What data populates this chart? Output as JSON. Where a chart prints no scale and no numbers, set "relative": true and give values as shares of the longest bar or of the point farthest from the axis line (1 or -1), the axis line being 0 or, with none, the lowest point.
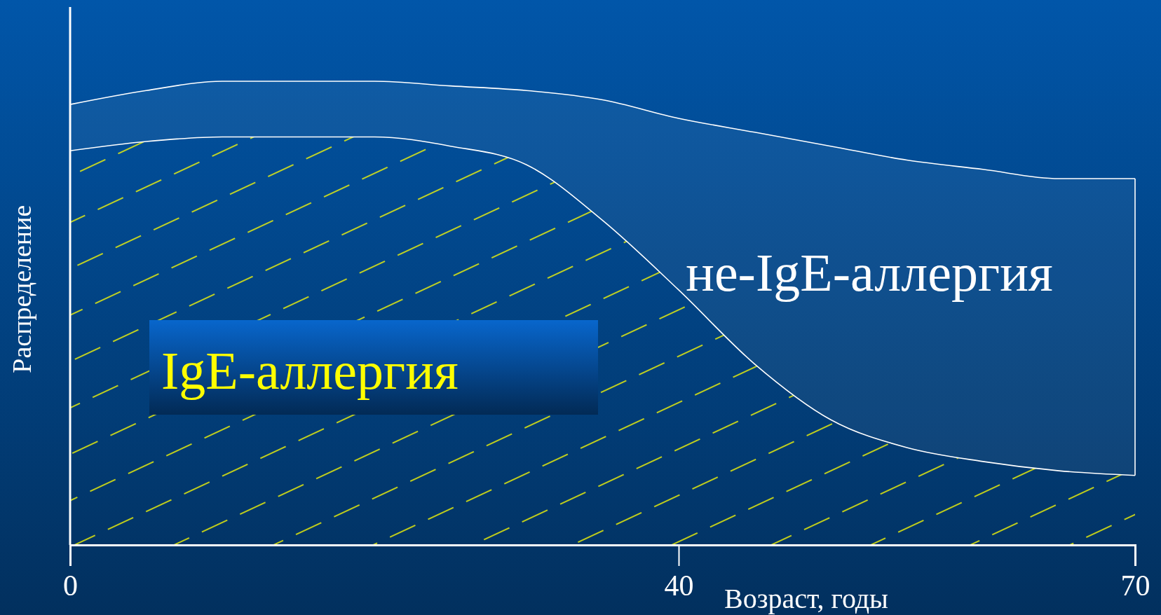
{
  "chart_data": {
    "type": "area",
    "stacked": true,
    "relative": true,
    "xlabel": "Возраст, годы",
    "ylabel": "Распределение",
    "legend": false,
    "x": [
      0,
      5,
      10,
      15,
      20,
      25,
      30,
      35,
      40,
      45,
      50,
      55,
      60,
      65,
      70
    ],
    "xlim": [
      0,
      70
    ],
    "xticks": [
      0,
      40,
      70
    ],
    "series": [
      {
        "name": "IgE-аллергия",
        "color": "#ffff00",
        "values": [
          0.85,
          0.87,
          0.88,
          0.88,
          0.88,
          0.86,
          0.82,
          0.7,
          0.55,
          0.39,
          0.27,
          0.21,
          0.18,
          0.16,
          0.15
        ]
      },
      {
        "name": "не-IgE-аллергия",
        "color": "#ffffff",
        "values": [
          0.1,
          0.11,
          0.12,
          0.12,
          0.12,
          0.13,
          0.16,
          0.26,
          0.37,
          0.5,
          0.59,
          0.62,
          0.63,
          0.63,
          0.64
        ]
      }
    ]
  }
}
